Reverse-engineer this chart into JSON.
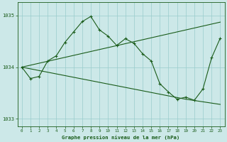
{
  "title": "Graphe pression niveau de la mer (hPa)",
  "bg_color": "#cce8e8",
  "grid_color": "#99cccc",
  "line_color": "#1a5c1a",
  "ylim": [
    1032.85,
    1035.25
  ],
  "yticks": [
    1033,
    1034,
    1035
  ],
  "xlim": [
    -0.5,
    23.5
  ],
  "xticks": [
    0,
    1,
    2,
    3,
    4,
    5,
    6,
    7,
    8,
    9,
    10,
    11,
    12,
    13,
    14,
    15,
    16,
    17,
    18,
    19,
    20,
    21,
    22,
    23
  ],
  "hours": [
    0,
    1,
    2,
    3,
    4,
    5,
    6,
    7,
    8,
    9,
    10,
    11,
    12,
    13,
    14,
    15,
    16,
    17,
    18,
    19,
    20,
    21,
    22,
    23
  ],
  "main_line": [
    1034.0,
    1033.78,
    1033.82,
    1034.12,
    1034.22,
    1034.48,
    1034.68,
    1034.88,
    1034.98,
    1034.72,
    1034.6,
    1034.42,
    1034.55,
    1034.46,
    1034.26,
    1034.12,
    1033.68,
    1033.52,
    1033.38,
    1033.42,
    1033.36,
    1033.58,
    1034.18,
    1034.56
  ],
  "upper_trend_x": [
    0,
    23
  ],
  "upper_trend_y": [
    1034.0,
    1034.87
  ],
  "lower_trend_x": [
    0,
    19,
    23
  ],
  "lower_trend_y": [
    1034.0,
    1033.38,
    1033.28
  ]
}
